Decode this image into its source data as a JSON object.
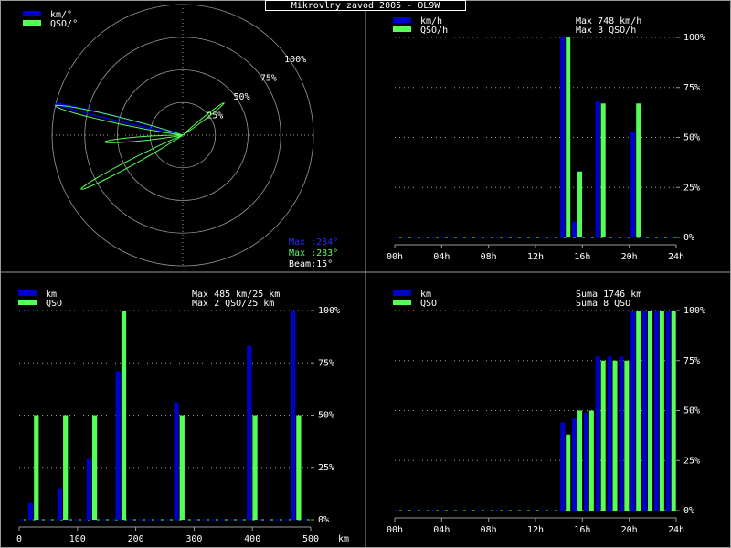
{
  "title": "Mikrovlny zavod 2005 - OL9W",
  "colors": {
    "blue": "#0000cc",
    "green": "#55ff55",
    "grid": "#9a9a9a",
    "text": "#ffffff"
  },
  "chart_data": [
    {
      "id": "polar",
      "type": "polar",
      "legend": [
        "km/°",
        "QSO/°"
      ],
      "ring_labels": [
        "25%",
        "50%",
        "75%",
        "100%"
      ],
      "info": {
        "max_km": "Max :284°",
        "max_qso": "Max :283°",
        "beam": "Beam:15°"
      },
      "series": [
        {
          "name": "km/°",
          "lobes": [
            {
              "angle_deg": 284,
              "value_pct": 100,
              "width_deg": 15
            }
          ]
        },
        {
          "name": "QSO/°",
          "lobes": [
            {
              "angle_deg": 283,
              "value_pct": 100,
              "width_deg": 15
            },
            {
              "angle_deg": 265,
              "value_pct": 60,
              "width_deg": 15
            },
            {
              "angle_deg": 242,
              "value_pct": 88,
              "width_deg": 15
            },
            {
              "angle_deg": 52,
              "value_pct": 40,
              "width_deg": 15
            }
          ]
        }
      ]
    },
    {
      "id": "hourly",
      "type": "bar",
      "legend": [
        "km/h",
        "QSO/h"
      ],
      "info": [
        "Max    748 km/h",
        "Max     3 QSO/h"
      ],
      "x_ticks": [
        "00h",
        "04h",
        "08h",
        "12h",
        "16h",
        "20h",
        "24h"
      ],
      "y_ticks": [
        "0%",
        "25%",
        "50%",
        "75%",
        "100%"
      ],
      "xlim": [
        0,
        24
      ],
      "ylim": [
        0,
        100
      ],
      "series": [
        {
          "name": "km/h",
          "x": [
            14,
            15,
            17,
            20
          ],
          "values": [
            100,
            8,
            68,
            53
          ]
        },
        {
          "name": "QSO/h",
          "x": [
            14,
            15,
            17,
            20
          ],
          "values": [
            100,
            33,
            67,
            67
          ]
        }
      ]
    },
    {
      "id": "distance",
      "type": "bar",
      "legend": [
        "km",
        "QSO"
      ],
      "info": [
        "Max   485 km/25 km",
        "Max     2 QSO/25 km"
      ],
      "x_ticks": [
        "0",
        "100",
        "200",
        "300",
        "400",
        "500"
      ],
      "x_unit": "km",
      "y_ticks": [
        "0%",
        "25%",
        "50%",
        "75%",
        "100%"
      ],
      "xlim": [
        0,
        500
      ],
      "ylim": [
        0,
        100
      ],
      "series": [
        {
          "name": "km",
          "x": [
            25,
            75,
            125,
            175,
            275,
            400,
            475
          ],
          "values": [
            8,
            15,
            29,
            71,
            56,
            83,
            100
          ]
        },
        {
          "name": "QSO",
          "x": [
            25,
            75,
            125,
            175,
            275,
            400,
            475
          ],
          "values": [
            50,
            50,
            50,
            100,
            50,
            50,
            50
          ]
        }
      ]
    },
    {
      "id": "cumulative",
      "type": "bar",
      "legend": [
        "km",
        "QSO"
      ],
      "info": [
        "Suma   1746 km",
        "Suma     8 QSO"
      ],
      "x_ticks": [
        "00h",
        "04h",
        "08h",
        "12h",
        "16h",
        "20h",
        "24h"
      ],
      "y_ticks": [
        "0%",
        "25%",
        "50%",
        "75%",
        "100%"
      ],
      "xlim": [
        0,
        24
      ],
      "ylim": [
        0,
        100
      ],
      "series": [
        {
          "name": "km",
          "x": [
            14,
            15,
            16,
            17,
            18,
            19,
            20,
            21,
            22,
            23
          ],
          "values": [
            44,
            46,
            49,
            77,
            77,
            77,
            100,
            100,
            100,
            100
          ]
        },
        {
          "name": "QSO",
          "x": [
            14,
            15,
            16,
            17,
            18,
            19,
            20,
            21,
            22,
            23
          ],
          "values": [
            38,
            50,
            50,
            75,
            75,
            75,
            100,
            100,
            100,
            100
          ]
        }
      ]
    }
  ]
}
